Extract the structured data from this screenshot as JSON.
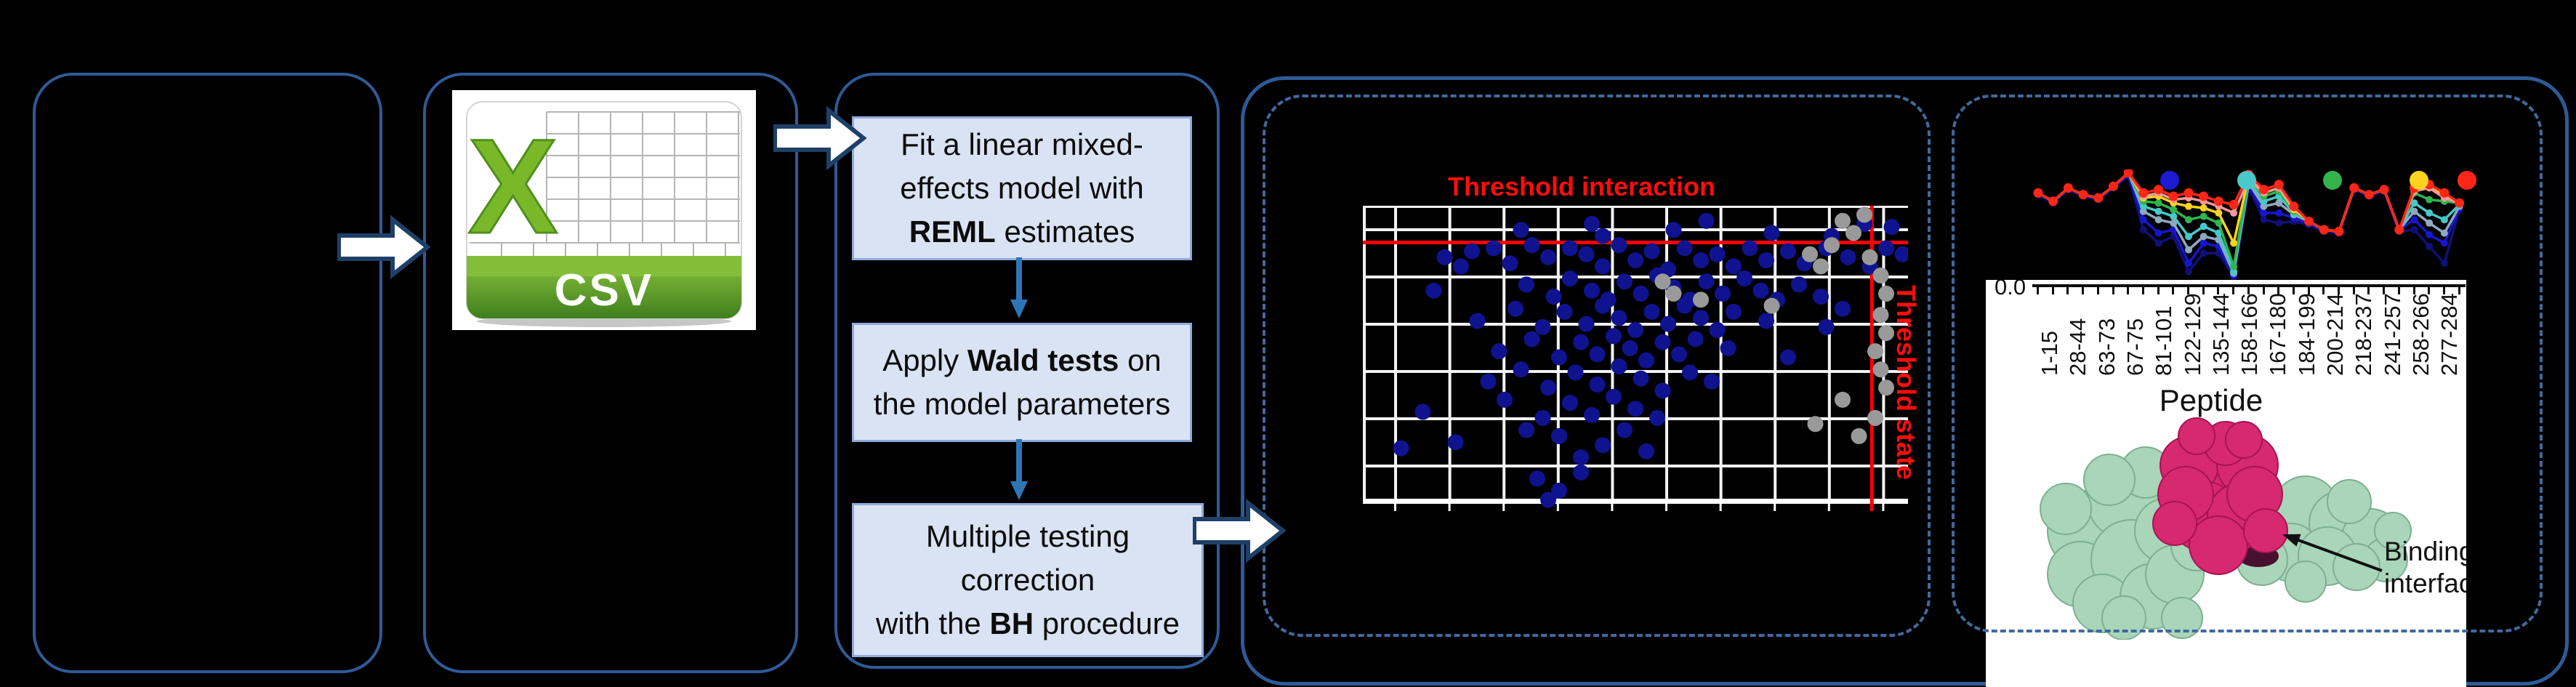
{
  "panels": {
    "empty_panel": {},
    "csv_panel": {
      "icon_letter": "X",
      "icon_label": "CSV"
    },
    "flowchart": {
      "boxes": [
        {
          "lines": [
            [
              {
                "t": "Fit a linear mixed-",
                "b": false
              }
            ],
            [
              {
                "t": "effects model with",
                "b": false
              }
            ],
            [
              {
                "t": "REML",
                "b": true
              },
              {
                "t": " estimates",
                "b": false
              }
            ]
          ]
        },
        {
          "lines": [
            [
              {
                "t": "Apply ",
                "b": false
              },
              {
                "t": "Wald tests",
                "b": true
              },
              {
                "t": " on",
                "b": false
              }
            ],
            [
              {
                "t": "the model parameters",
                "b": false
              }
            ]
          ]
        },
        {
          "lines": [
            [
              {
                "t": "Multiple testing",
                "b": false
              }
            ],
            [
              {
                "t": "correction",
                "b": false
              }
            ],
            [
              {
                "t": "with the ",
                "b": false
              },
              {
                "t": "BH",
                "b": true
              },
              {
                "t": " procedure",
                "b": false
              }
            ]
          ]
        }
      ],
      "box_fill": "#dae3f3",
      "box_border": "#8faadc",
      "connector_color": "#2e75b6"
    },
    "scatter_panel": {
      "title": "Threshold interaction",
      "side_label": "Threshold state",
      "threshold_color": "#ff0d0d"
    },
    "profile_panel": {
      "y_tick_label": "0.0",
      "x_axis_title": "Peptide",
      "annotation": "Binding interface",
      "protein_colors": {
        "surface": "#a9d5b9",
        "surface_edge": "#7cb091",
        "core": "#d6296f",
        "core_edge": "#a81254",
        "crevice": "#47102e"
      }
    },
    "border_color": "#2f5a97",
    "dashed_border_color": "#41699e",
    "arrow_fill": "#ffffff",
    "arrow_outline": "#1e3f66"
  },
  "chart_data": [
    {
      "type": "scatter",
      "title": "Threshold interaction",
      "right_label": "Threshold state",
      "background": "#000000",
      "grid": true,
      "grid_color": "#f2f2f2",
      "threshold_interaction_y_pct": 12,
      "threshold_state_x_pct": 93.3,
      "series": [
        {
          "name": "blue-points",
          "color": "#10138f",
          "points_pct": [
            [
              29,
              8
            ],
            [
              42,
              6
            ],
            [
              44,
              10
            ],
            [
              57,
              8
            ],
            [
              63,
              5
            ],
            [
              75,
              9
            ],
            [
              86,
              10
            ],
            [
              92,
              6
            ],
            [
              97,
              7
            ],
            [
              15,
              17
            ],
            [
              18,
              20
            ],
            [
              20,
              15
            ],
            [
              24,
              14
            ],
            [
              27,
              19
            ],
            [
              31,
              13
            ],
            [
              34,
              17
            ],
            [
              38,
              14
            ],
            [
              41,
              16
            ],
            [
              44,
              20
            ],
            [
              47,
              13
            ],
            [
              50,
              18
            ],
            [
              53,
              15
            ],
            [
              56,
              21
            ],
            [
              59,
              14
            ],
            [
              62,
              18
            ],
            [
              65,
              16
            ],
            [
              68,
              20
            ],
            [
              71,
              14
            ],
            [
              74,
              18
            ],
            [
              78,
              15
            ],
            [
              81,
              19
            ],
            [
              85,
              14
            ],
            [
              89,
              17
            ],
            [
              93,
              20
            ],
            [
              96,
              14
            ],
            [
              99,
              16
            ],
            [
              13,
              28
            ],
            [
              30,
              26
            ],
            [
              35,
              30
            ],
            [
              38,
              24
            ],
            [
              42,
              28
            ],
            [
              45,
              31
            ],
            [
              48,
              25
            ],
            [
              51,
              29
            ],
            [
              54,
              23
            ],
            [
              57,
              27
            ],
            [
              60,
              31
            ],
            [
              63,
              25
            ],
            [
              66,
              29
            ],
            [
              70,
              24
            ],
            [
              73,
              28
            ],
            [
              76,
              31
            ],
            [
              80,
              26
            ],
            [
              84,
              30
            ],
            [
              21,
              38
            ],
            [
              28,
              34
            ],
            [
              33,
              40
            ],
            [
              37,
              35
            ],
            [
              41,
              39
            ],
            [
              44,
              33
            ],
            [
              47,
              37
            ],
            [
              50,
              41
            ],
            [
              53,
              35
            ],
            [
              56,
              39
            ],
            [
              59,
              33
            ],
            [
              62,
              37
            ],
            [
              65,
              41
            ],
            [
              68,
              35
            ],
            [
              74,
              38
            ],
            [
              85,
              40
            ],
            [
              88,
              34
            ],
            [
              25,
              48
            ],
            [
              31,
              44
            ],
            [
              36,
              50
            ],
            [
              40,
              45
            ],
            [
              43,
              49
            ],
            [
              46,
              43
            ],
            [
              49,
              47
            ],
            [
              52,
              51
            ],
            [
              55,
              45
            ],
            [
              58,
              49
            ],
            [
              61,
              44
            ],
            [
              67,
              47
            ],
            [
              78,
              50
            ],
            [
              23,
              58
            ],
            [
              29,
              54
            ],
            [
              34,
              60
            ],
            [
              39,
              55
            ],
            [
              43,
              59
            ],
            [
              47,
              53
            ],
            [
              51,
              57
            ],
            [
              55,
              61
            ],
            [
              60,
              55
            ],
            [
              64,
              58
            ],
            [
              11,
              68
            ],
            [
              26,
              64
            ],
            [
              33,
              70
            ],
            [
              38,
              65
            ],
            [
              42,
              69
            ],
            [
              46,
              63
            ],
            [
              50,
              67
            ],
            [
              54,
              70
            ],
            [
              7,
              80
            ],
            [
              17,
              78
            ],
            [
              30,
              74
            ],
            [
              36,
              76
            ],
            [
              40,
              83
            ],
            [
              44,
              79
            ],
            [
              48,
              74
            ],
            [
              52,
              81
            ],
            [
              32,
              90
            ],
            [
              36,
              94
            ],
            [
              34,
              97
            ],
            [
              40,
              88
            ]
          ]
        },
        {
          "name": "gray-points",
          "color": "#999999",
          "points_pct": [
            [
              55,
              25
            ],
            [
              57,
              29
            ],
            [
              62,
              31
            ],
            [
              75,
              33
            ],
            [
              82,
              16
            ],
            [
              84,
              20
            ],
            [
              86,
              13
            ],
            [
              88,
              5
            ],
            [
              90,
              9
            ],
            [
              92,
              3
            ],
            [
              93,
              17
            ],
            [
              95,
              23
            ],
            [
              96,
              29
            ],
            [
              95,
              36
            ],
            [
              96,
              42
            ],
            [
              94,
              48
            ],
            [
              95,
              54
            ],
            [
              96,
              60
            ],
            [
              88,
              64
            ],
            [
              94,
              70
            ],
            [
              83,
              72
            ],
            [
              91,
              76
            ]
          ]
        }
      ]
    },
    {
      "type": "line",
      "xlabel": "Peptide",
      "y_tick_label": "0.0",
      "categories": [
        "1-15",
        "28-44",
        "63-73",
        "67-75",
        "81-101",
        "122-129",
        "135-144",
        "158-166",
        "167-180",
        "184-199",
        "200-214",
        "218-237",
        "241-257",
        "258-266",
        "277-284"
      ],
      "legend_dot_colors": [
        "#1b1bd1",
        "#49c9c9",
        "#33b34a",
        "#ffd21f",
        "#ff2617"
      ],
      "series": [
        {
          "name": "navy",
          "color": "#10107a",
          "values": [
            51,
            46,
            54,
            50,
            48,
            55,
            62,
            30,
            22,
            26,
            5,
            16,
            16,
            2,
            55,
            36,
            34,
            35,
            33,
            29,
            28,
            54,
            50,
            53,
            29,
            30,
            20,
            10,
            42
          ]
        },
        {
          "name": "blue",
          "color": "#1616cf",
          "values": [
            52,
            47,
            55,
            51,
            49,
            56,
            63,
            36,
            28,
            30,
            10,
            22,
            20,
            3,
            57,
            40,
            40,
            37,
            34,
            30,
            29,
            55,
            51,
            54,
            30,
            36,
            27,
            22,
            43
          ]
        },
        {
          "name": "steel",
          "color": "#8fa8c0",
          "values": [
            52,
            47,
            55,
            51,
            49,
            56,
            64,
            41,
            36,
            34,
            18,
            26,
            24,
            4,
            58,
            44,
            46,
            39,
            35,
            30,
            29,
            55,
            51,
            54,
            30,
            41,
            34,
            28,
            44
          ]
        },
        {
          "name": "cyan",
          "color": "#46c8c8",
          "values": [
            52,
            47,
            55,
            51,
            49,
            56,
            64,
            44,
            41,
            38,
            26,
            32,
            28,
            5,
            59,
            47,
            50,
            40,
            35,
            30,
            29,
            55,
            51,
            54,
            30,
            46,
            40,
            36,
            45
          ]
        },
        {
          "name": "green",
          "color": "#2fb54d",
          "values": [
            52,
            47,
            55,
            51,
            49,
            56,
            64,
            47,
            46,
            42,
            36,
            38,
            34,
            8,
            61,
            50,
            53,
            41,
            35,
            30,
            29,
            55,
            51,
            54,
            30,
            52,
            48,
            47,
            46
          ]
        },
        {
          "name": "yellow",
          "color": "#ffd21f",
          "values": [
            52,
            47,
            55,
            51,
            49,
            56,
            64,
            49,
            50,
            46,
            44,
            43,
            40,
            22,
            62,
            52,
            55,
            42,
            35,
            30,
            29,
            55,
            51,
            54,
            30,
            54,
            56,
            50,
            46
          ]
        },
        {
          "name": "pink",
          "color": "#f29a9a",
          "values": [
            52,
            47,
            55,
            51,
            49,
            56,
            64,
            50,
            52,
            48,
            49,
            47,
            44,
            40,
            60,
            52,
            55,
            43,
            35,
            30,
            29,
            55,
            51,
            54,
            30,
            53,
            55,
            49,
            46
          ]
        },
        {
          "name": "red",
          "color": "#ff2617",
          "values": [
            52,
            47,
            55,
            51,
            49,
            56,
            64,
            52,
            54,
            50,
            52,
            50,
            47,
            45,
            63,
            54,
            57,
            44,
            35,
            30,
            29,
            55,
            51,
            54,
            30,
            55,
            57,
            52,
            46
          ]
        }
      ]
    }
  ]
}
